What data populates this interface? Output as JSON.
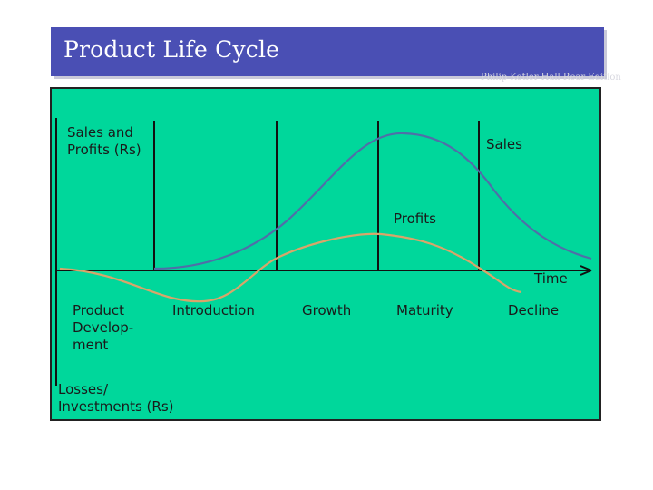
{
  "slide": {
    "title": "Product Life Cycle",
    "watermark": "Philip Kotler Hall Rear Edition"
  },
  "diagram": {
    "y_label": "Sales and\nProfits (Rs)",
    "bottom_label": "Losses/\nInvestments (Rs)",
    "x_label": "Time",
    "curves": {
      "sales": "Sales",
      "profits": "Profits"
    },
    "stages": {
      "development": "Product\nDevelop-\nment",
      "introduction": "Introduction",
      "growth": "Growth",
      "maturity": "Maturity",
      "decline": "Decline"
    },
    "colors": {
      "background": "#00d79b",
      "sales_curve": "#4f6fa8",
      "profit_curve": "#d9a56a",
      "title_bar": "#4a4fb4"
    }
  }
}
